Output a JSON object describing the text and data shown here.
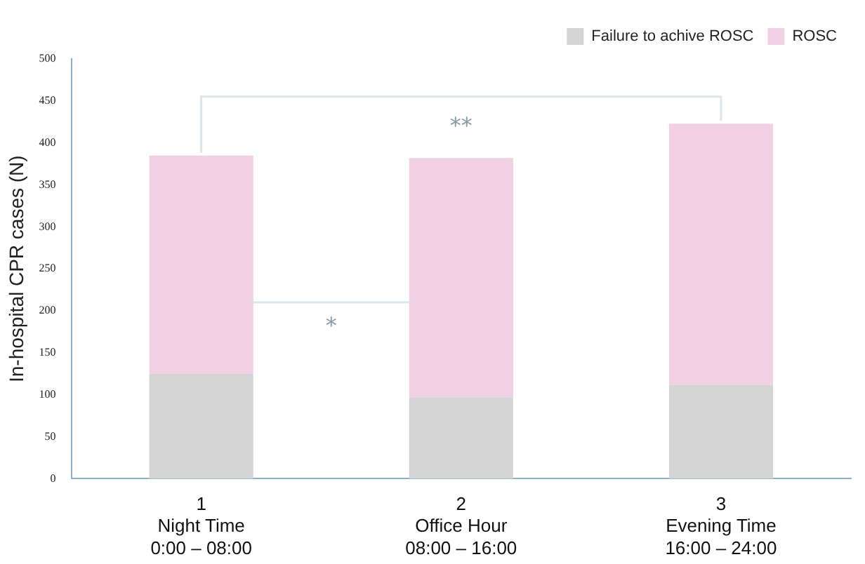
{
  "chart_data": {
    "type": "bar",
    "stacked": true,
    "ylabel": "In-hospital CPR cases (N)",
    "categories": [
      "1\nNight Time\n0:00 – 08:00",
      "2\nOffice Hour\n08:00 – 16:00",
      "3\nEvening Time\n16:00 – 24:00"
    ],
    "series": [
      {
        "name": "Failure to achive ROSC",
        "color": "#d4d4d4",
        "values": [
          125,
          97,
          112
        ]
      },
      {
        "name": "ROSC",
        "color": "#f0d0e2",
        "values": [
          260,
          285,
          311
        ]
      }
    ],
    "ylim": [
      0,
      500
    ],
    "yticks": [
      0,
      50,
      100,
      150,
      200,
      250,
      300,
      350,
      400,
      450,
      500
    ],
    "grid": false,
    "legend": "top right",
    "annotations": [
      "*",
      "**"
    ]
  }
}
